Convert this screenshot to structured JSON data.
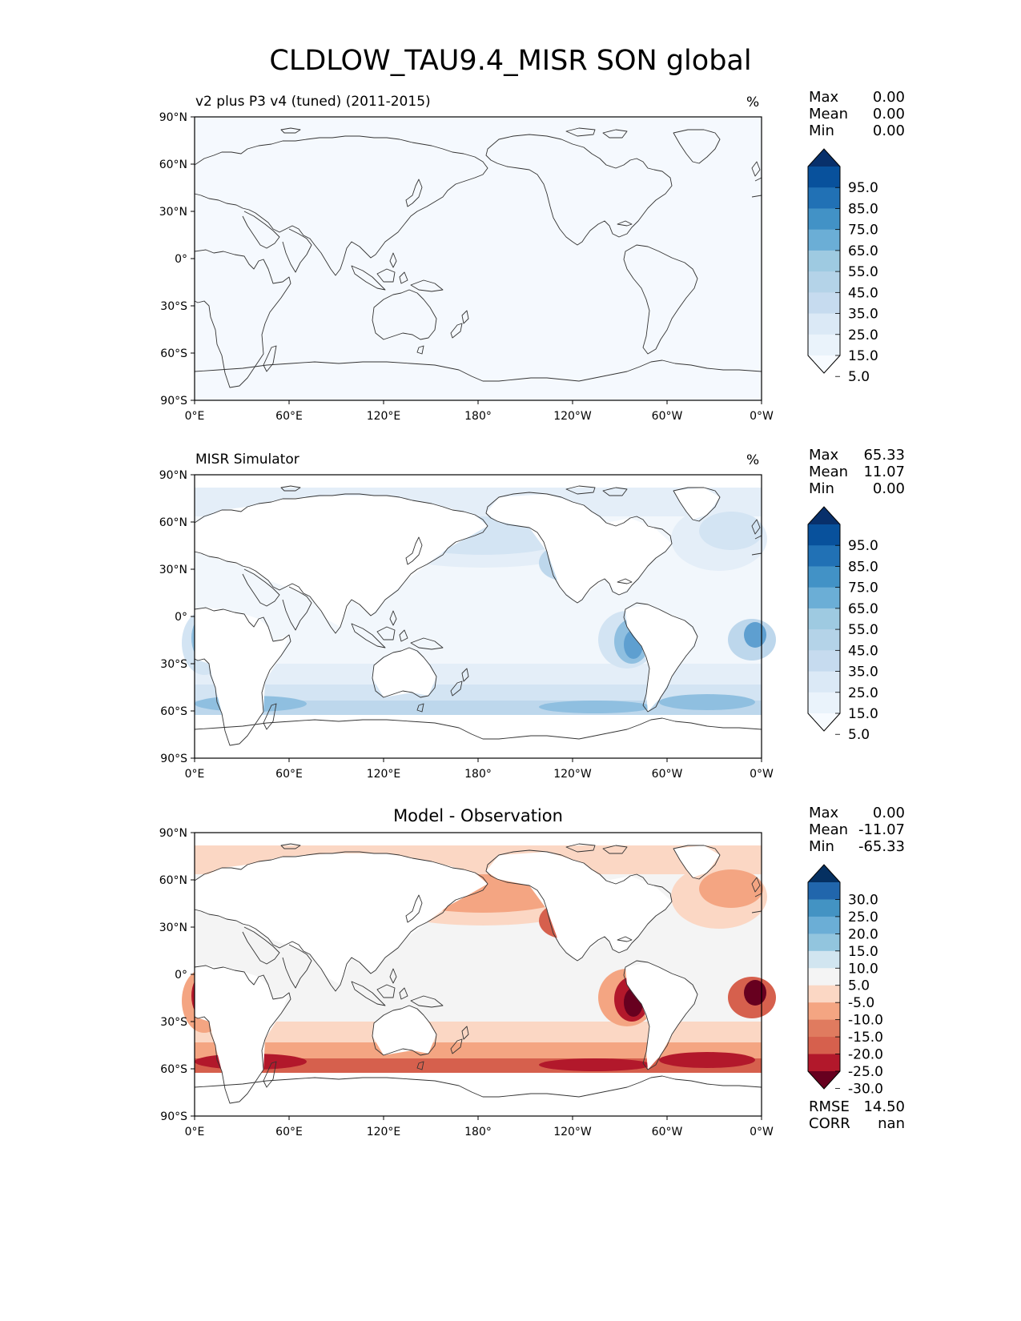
{
  "figure": {
    "title": "CLDLOW_TAU9.4_MISR SON global",
    "lat_labels": [
      "90°N",
      "60°N",
      "30°N",
      "0°",
      "30°S",
      "60°S",
      "90°S"
    ],
    "lon_labels": [
      "0°E",
      "60°E",
      "120°E",
      "180°",
      "120°W",
      "60°W",
      "0°W"
    ]
  },
  "panels": [
    {
      "subtitle": "v2 plus P3 v4 (tuned) (2011-2015)",
      "unit": "%",
      "stats": [
        {
          "label": "Max",
          "value": "0.00"
        },
        {
          "label": "Mean",
          "value": "0.00"
        },
        {
          "label": "Min",
          "value": "0.00"
        }
      ],
      "colorbar": {
        "labels": [
          "95.0",
          "85.0",
          "75.0",
          "65.0",
          "55.0",
          "45.0",
          "35.0",
          "25.0",
          "15.0",
          "5.0"
        ],
        "colors": [
          "#08306b",
          "#08519c",
          "#2171b5",
          "#4292c6",
          "#6baed6",
          "#9ecae1",
          "#b4d3e8",
          "#c6dbef",
          "#dbe9f6",
          "#eaf3fb",
          "#f7fbff"
        ]
      },
      "field": "uniform-zero"
    },
    {
      "subtitle": "MISR Simulator",
      "unit": "%",
      "stats": [
        {
          "label": "Max",
          "value": "65.33"
        },
        {
          "label": "Mean",
          "value": "11.07"
        },
        {
          "label": "Min",
          "value": "0.00"
        }
      ],
      "colorbar": {
        "labels": [
          "95.0",
          "85.0",
          "75.0",
          "65.0",
          "55.0",
          "45.0",
          "35.0",
          "25.0",
          "15.0",
          "5.0"
        ],
        "colors": [
          "#08306b",
          "#08519c",
          "#2171b5",
          "#4292c6",
          "#6baed6",
          "#9ecae1",
          "#b4d3e8",
          "#c6dbef",
          "#dbe9f6",
          "#eaf3fb",
          "#f7fbff"
        ]
      },
      "field": "observed-low-cloud"
    },
    {
      "title": "Model - Observation",
      "stats": [
        {
          "label": "Max",
          "value": "0.00"
        },
        {
          "label": "Mean",
          "value": "-11.07"
        },
        {
          "label": "Min",
          "value": "-65.33"
        }
      ],
      "colorbar": {
        "labels": [
          "30.0",
          "25.0",
          "20.0",
          "15.0",
          "10.0",
          "5.0",
          "-5.0",
          "-10.0",
          "-15.0",
          "-20.0",
          "-25.0",
          "-30.0"
        ],
        "colors": [
          "#053061",
          "#2166ac",
          "#4393c3",
          "#6baed6",
          "#92c5de",
          "#d1e5f0",
          "#f4f4f4",
          "#fbd7c4",
          "#f4a582",
          "#e07b5f",
          "#d6604d",
          "#b2182b",
          "#67001f"
        ]
      },
      "metrics": [
        {
          "label": "RMSE",
          "value": "14.50"
        },
        {
          "label": "CORR",
          "value": "nan"
        }
      ],
      "field": "difference"
    }
  ]
}
